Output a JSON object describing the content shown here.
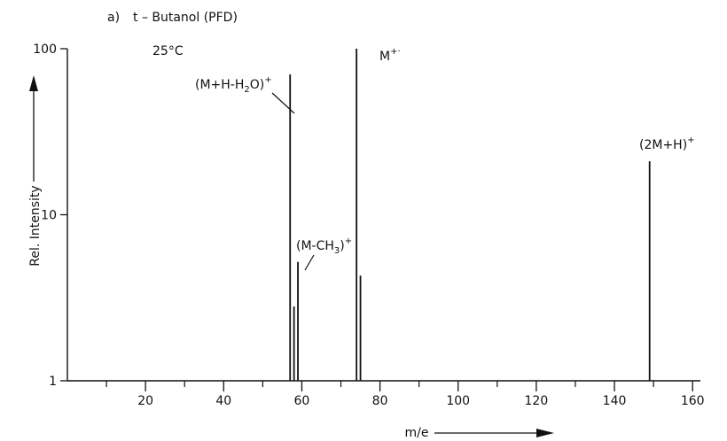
{
  "chart_data": {
    "type": "bar",
    "panel_label": "a)",
    "title": "t – Butanol (PFD)",
    "condition": "25°C",
    "xlabel": "m/e",
    "ylabel": "Rel. Intensity",
    "x_axis": {
      "range": [
        0,
        162
      ],
      "ticks": [
        20,
        40,
        60,
        80,
        100,
        120,
        140,
        160
      ],
      "minor_ticks": [
        10,
        30,
        50,
        70,
        90,
        110,
        130,
        150
      ]
    },
    "y_axis": {
      "scale": "log",
      "range": [
        1,
        100
      ],
      "ticks": [
        1,
        10,
        100
      ],
      "tick_labels": [
        "1",
        "10",
        "100"
      ]
    },
    "series": [
      {
        "x": [
          57,
          58,
          59,
          74,
          75,
          149
        ],
        "values": [
          70,
          2.8,
          5.2,
          100,
          4.3,
          21
        ]
      }
    ],
    "annotations": [
      {
        "base": "(M+H-H",
        "sub": "2",
        "rest": "O)",
        "sup": "+",
        "x": 57
      },
      {
        "base": "(M-CH",
        "sub": "3",
        "rest": ")",
        "sup": "+",
        "x": 59
      },
      {
        "base": "M",
        "sub": "",
        "rest": "",
        "sup": "+·",
        "x": 74
      },
      {
        "base": "(2M+H)",
        "sub": "",
        "rest": "",
        "sup": "+",
        "x": 149
      }
    ]
  }
}
